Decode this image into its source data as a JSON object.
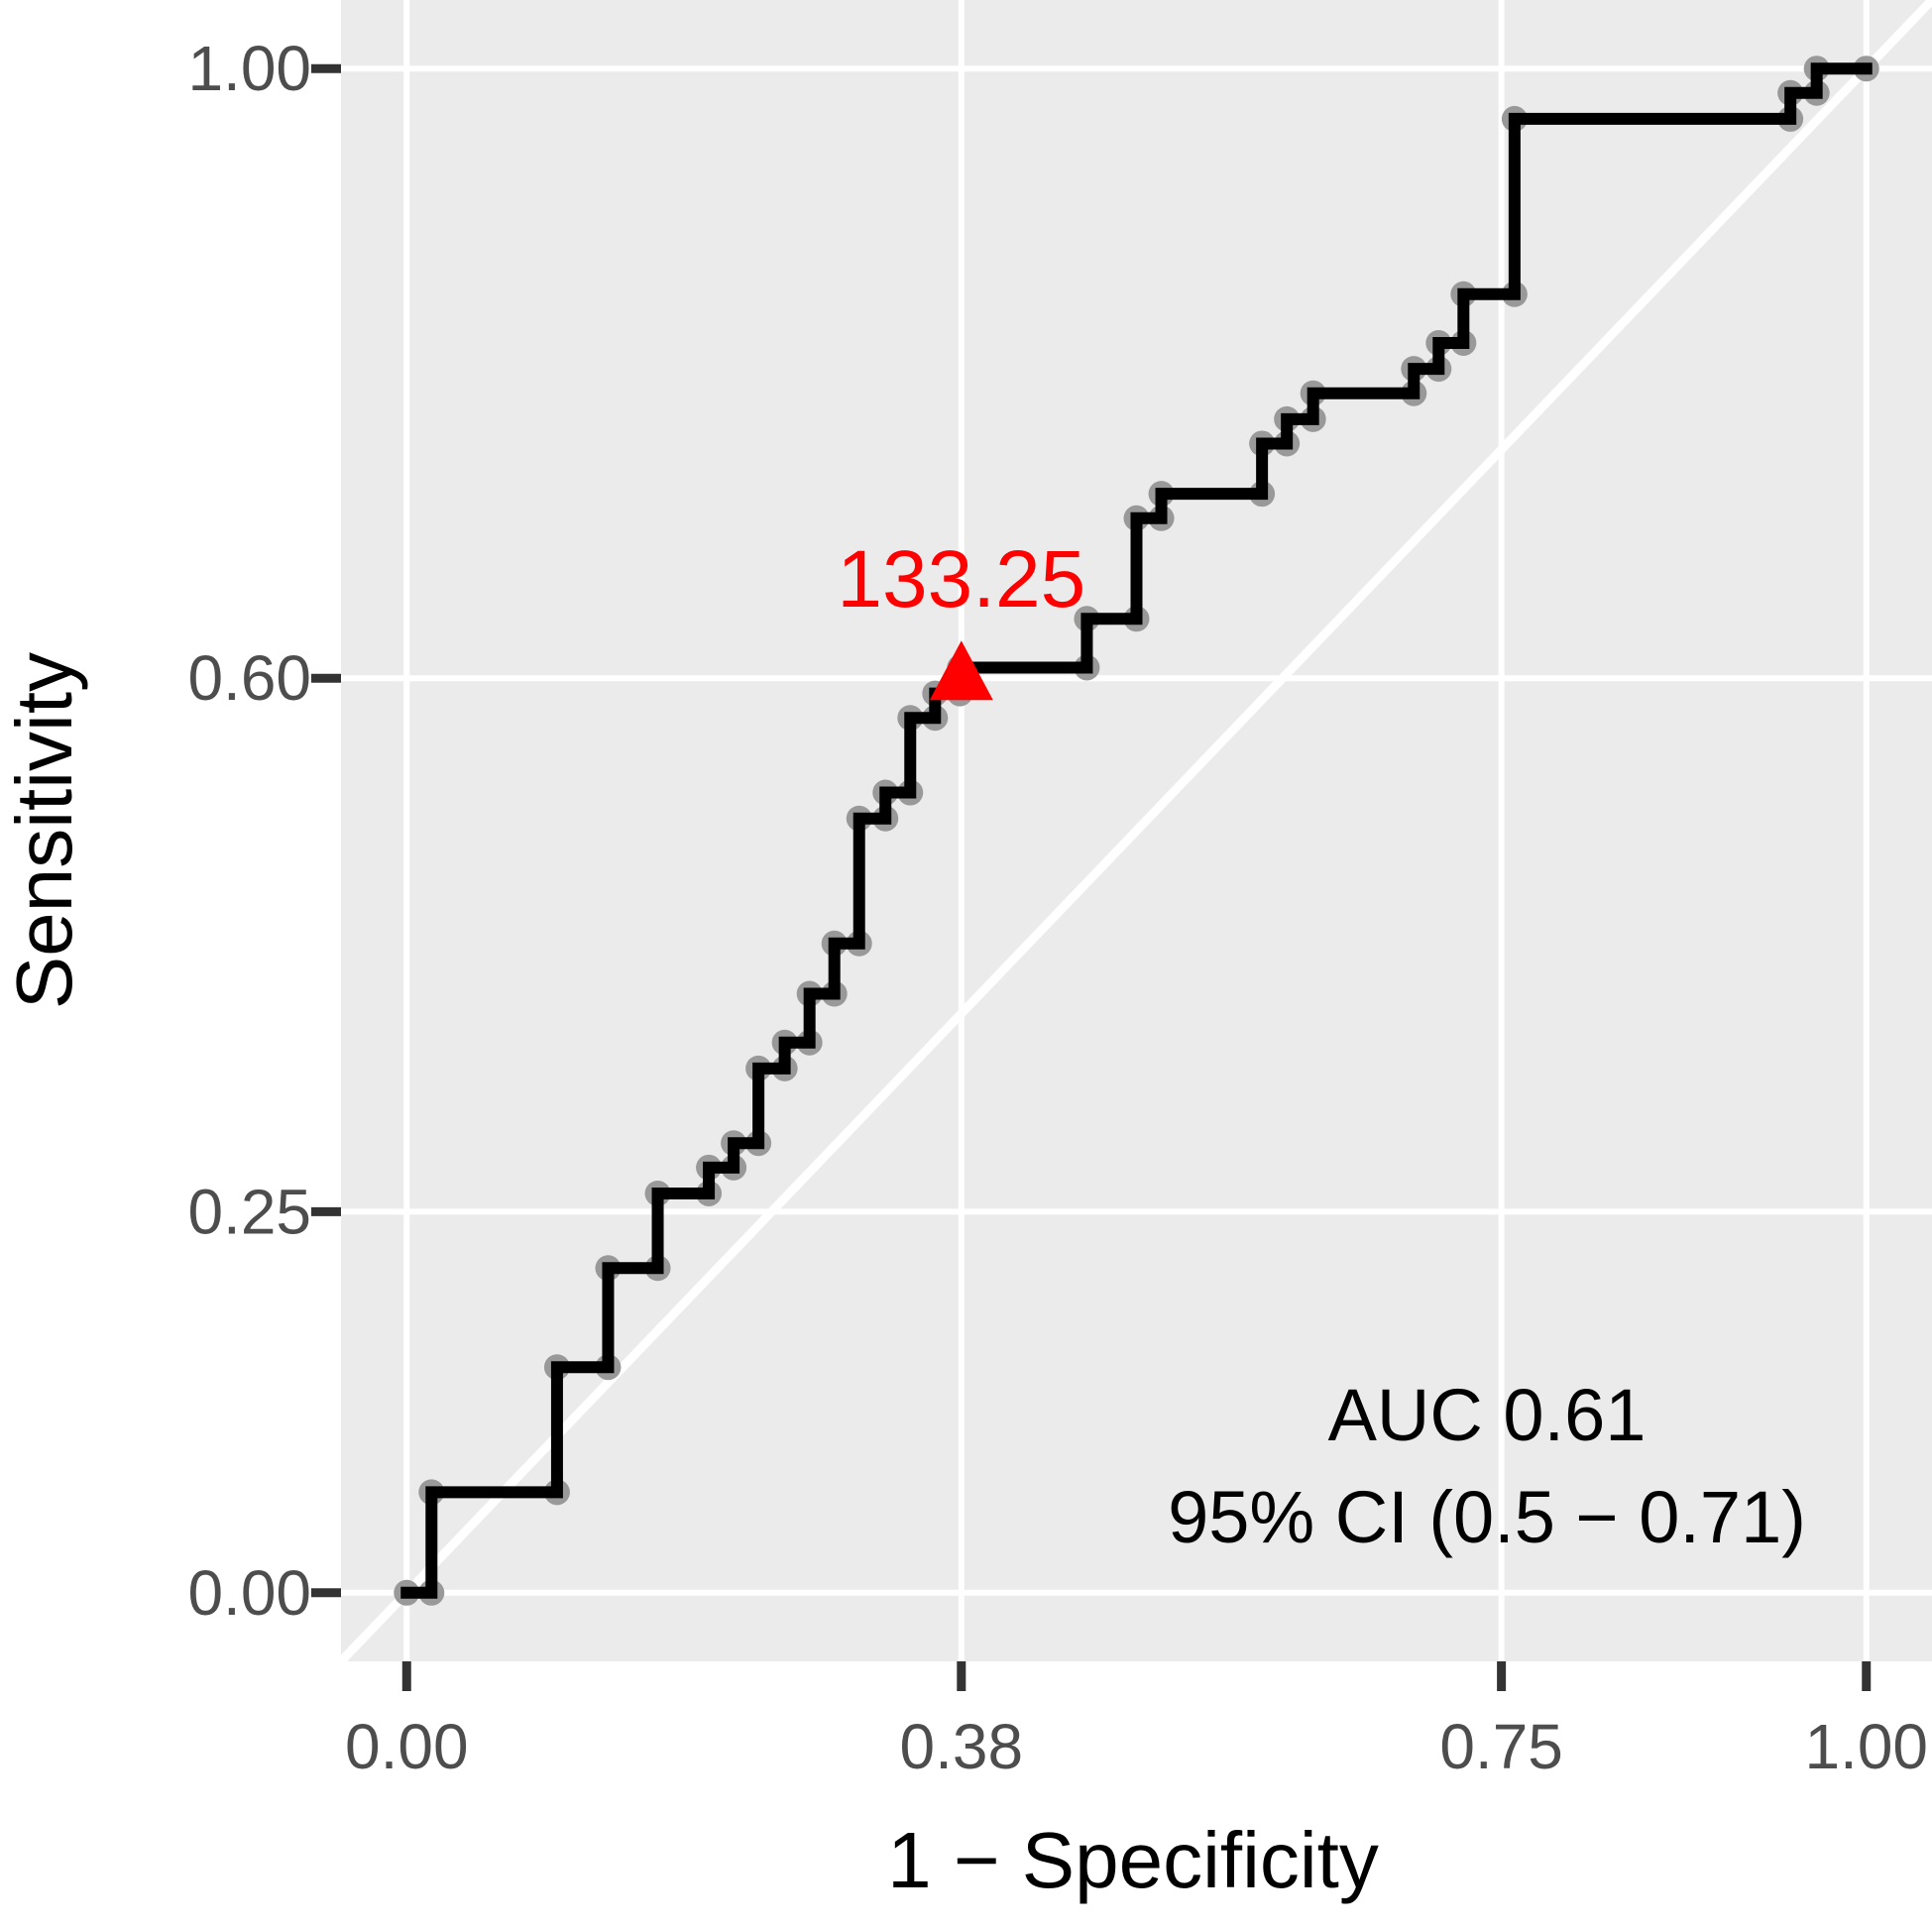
{
  "chart_data": {
    "type": "line",
    "xlabel": "1 − Specificity",
    "ylabel": "Sensitivity",
    "xlim": [
      -0.045,
      1.045
    ],
    "ylim": [
      -0.045,
      1.045
    ],
    "x_ticks": [
      0.0,
      0.38,
      0.75,
      1.0
    ],
    "x_tick_labels": [
      "0.00",
      "0.38",
      "0.75",
      "1.00"
    ],
    "y_ticks": [
      0.0,
      0.25,
      0.6,
      1.0
    ],
    "y_tick_labels": [
      "0.00",
      "0.25",
      "0.60",
      "1.00"
    ],
    "grid": true,
    "diagonal_reference": true,
    "annotation": {
      "line1": "AUC 0.61",
      "line2": "95% CI (0.5 − 0.71)"
    },
    "optimal_cutoff": {
      "label": "133.25",
      "x": 0.38,
      "y": 0.6,
      "color": "#ff0000",
      "marker": "triangle"
    },
    "roc_curve": {
      "line_color": "#000000",
      "point_color": "#999999",
      "points": [
        [
          0.0,
          0.0
        ],
        [
          0.017,
          0.0
        ],
        [
          0.017,
          0.066
        ],
        [
          0.103,
          0.066
        ],
        [
          0.103,
          0.148
        ],
        [
          0.138,
          0.148
        ],
        [
          0.138,
          0.213
        ],
        [
          0.172,
          0.213
        ],
        [
          0.172,
          0.262
        ],
        [
          0.207,
          0.262
        ],
        [
          0.207,
          0.279
        ],
        [
          0.224,
          0.279
        ],
        [
          0.224,
          0.295
        ],
        [
          0.241,
          0.295
        ],
        [
          0.241,
          0.344
        ],
        [
          0.259,
          0.344
        ],
        [
          0.259,
          0.361
        ],
        [
          0.276,
          0.361
        ],
        [
          0.276,
          0.393
        ],
        [
          0.293,
          0.393
        ],
        [
          0.293,
          0.426
        ],
        [
          0.31,
          0.426
        ],
        [
          0.31,
          0.508
        ],
        [
          0.328,
          0.508
        ],
        [
          0.328,
          0.525
        ],
        [
          0.345,
          0.525
        ],
        [
          0.345,
          0.574
        ],
        [
          0.362,
          0.574
        ],
        [
          0.362,
          0.59
        ],
        [
          0.379,
          0.59
        ],
        [
          0.379,
          0.607
        ],
        [
          0.466,
          0.607
        ],
        [
          0.466,
          0.639
        ],
        [
          0.5,
          0.639
        ],
        [
          0.5,
          0.705
        ],
        [
          0.517,
          0.705
        ],
        [
          0.517,
          0.721
        ],
        [
          0.586,
          0.721
        ],
        [
          0.586,
          0.754
        ],
        [
          0.603,
          0.754
        ],
        [
          0.603,
          0.77
        ],
        [
          0.621,
          0.77
        ],
        [
          0.621,
          0.787
        ],
        [
          0.69,
          0.787
        ],
        [
          0.69,
          0.803
        ],
        [
          0.707,
          0.803
        ],
        [
          0.707,
          0.82
        ],
        [
          0.724,
          0.82
        ],
        [
          0.724,
          0.852
        ],
        [
          0.759,
          0.852
        ],
        [
          0.759,
          0.967
        ],
        [
          0.948,
          0.967
        ],
        [
          0.948,
          0.984
        ],
        [
          0.966,
          0.984
        ],
        [
          0.966,
          1.0
        ],
        [
          1.0,
          1.0
        ]
      ]
    }
  }
}
